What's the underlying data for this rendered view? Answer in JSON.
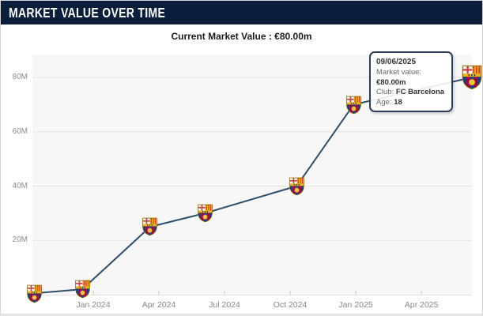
{
  "header": {
    "title": "MARKET VALUE OVER TIME"
  },
  "summary": {
    "current_market_value_text": "Current Market Value : €80.00m"
  },
  "tooltip": {
    "date": "09/06/2025",
    "rows": [
      {
        "label": "Market value: ",
        "value": "€80.00m"
      },
      {
        "label": "Club: ",
        "value": "FC Barcelona"
      },
      {
        "label": "Age: ",
        "value": "18"
      }
    ]
  },
  "chart_data": {
    "type": "line",
    "title": "Market value over time",
    "xlabel": "",
    "ylabel": "",
    "ylim_millions": [
      0,
      88
    ],
    "grid": true,
    "legend": "none",
    "marker_icon": "fc-barcelona-crest",
    "series_color": "#2e4e6e",
    "y_ticks": [
      {
        "value_m": 20,
        "label": "20M"
      },
      {
        "value_m": 40,
        "label": "40M"
      },
      {
        "value_m": 60,
        "label": "60M"
      },
      {
        "value_m": 80,
        "label": "80M"
      }
    ],
    "x_ticks": [
      {
        "month_offset": 0,
        "label": "Jan 2024"
      },
      {
        "month_offset": 3,
        "label": "Apr 2024"
      },
      {
        "month_offset": 6,
        "label": "Jul 2024"
      },
      {
        "month_offset": 9,
        "label": "Oct 2024"
      },
      {
        "month_offset": 12,
        "label": "Jan 2025"
      },
      {
        "month_offset": 15,
        "label": "Apr 2025"
      }
    ],
    "points": [
      {
        "date_approx": "Oct 2023",
        "month_offset": -2.7,
        "value_m": 0.5
      },
      {
        "date_approx": "Dec 2023",
        "month_offset": -0.5,
        "value_m": 2
      },
      {
        "date_approx": "Mar 2024",
        "month_offset": 2.6,
        "value_m": 25
      },
      {
        "date_approx": "Jun 2024",
        "month_offset": 5.1,
        "value_m": 30
      },
      {
        "date_approx": "Oct 2024",
        "month_offset": 9.3,
        "value_m": 40
      },
      {
        "date_approx": "Dec 2024",
        "month_offset": 11.9,
        "value_m": 70
      },
      {
        "date_approx": "09/06/2025",
        "month_offset": 17.3,
        "value_m": 80,
        "highlight": true
      }
    ]
  },
  "colors": {
    "header_bg": "#0b1f3c",
    "line": "#2e4e6e",
    "plot_bg": "#f7f7f8",
    "grid": "#e3e3e3",
    "tooltip_border": "#2c3e5f"
  }
}
